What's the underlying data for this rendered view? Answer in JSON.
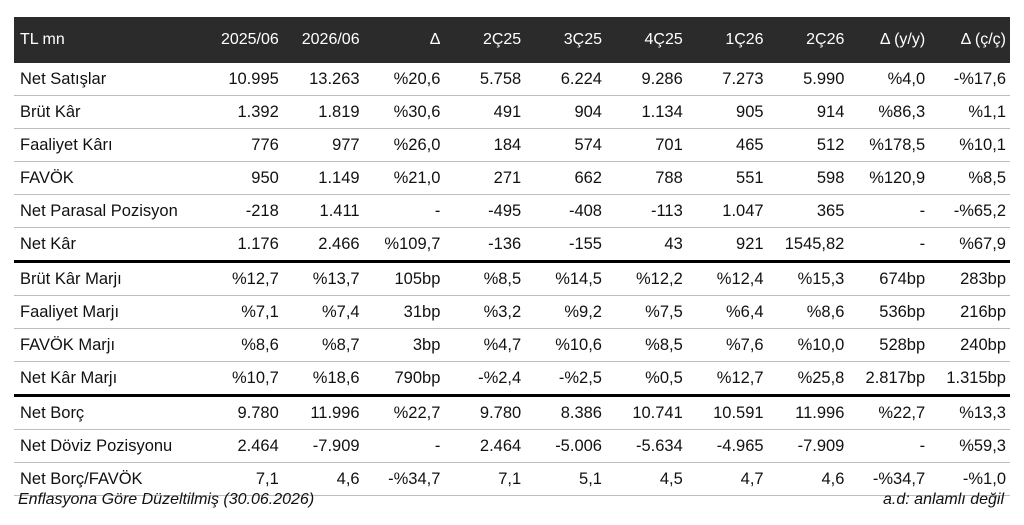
{
  "table": {
    "headers": [
      "TL mn",
      "2025/06",
      "2026/06",
      "Δ",
      "2Ç25",
      "3Ç25",
      "4Ç25",
      "1Ç26",
      "2Ç26",
      "Δ (y/y)",
      "Δ (ç/ç)"
    ],
    "rows": [
      [
        "Net Satışlar",
        "10.995",
        "13.263",
        "%20,6",
        "5.758",
        "6.224",
        "9.286",
        "7.273",
        "5.990",
        "%4,0",
        "-%17,6"
      ],
      [
        "Brüt Kâr",
        "1.392",
        "1.819",
        "%30,6",
        "491",
        "904",
        "1.134",
        "905",
        "914",
        "%86,3",
        "%1,1"
      ],
      [
        "Faaliyet Kârı",
        "776",
        "977",
        "%26,0",
        "184",
        "574",
        "701",
        "465",
        "512",
        "%178,5",
        "%10,1"
      ],
      [
        "FAVÖK",
        "950",
        "1.149",
        "%21,0",
        "271",
        "662",
        "788",
        "551",
        "598",
        "%120,9",
        "%8,5"
      ],
      [
        "Net Parasal Pozisyon",
        "-218",
        "1.411",
        "-",
        "-495",
        "-408",
        "-113",
        "1.047",
        "365",
        "-",
        "-%65,2"
      ],
      [
        "Net Kâr",
        "1.176",
        "2.466",
        "%109,7",
        "-136",
        "-155",
        "43",
        "921",
        "1545,82",
        "-",
        "%67,9"
      ],
      [
        "Brüt Kâr Marjı",
        "%12,7",
        "%13,7",
        "105bp",
        "%8,5",
        "%14,5",
        "%12,2",
        "%12,4",
        "%15,3",
        "674bp",
        "283bp"
      ],
      [
        "Faaliyet Marjı",
        "%7,1",
        "%7,4",
        "31bp",
        "%3,2",
        "%9,2",
        "%7,5",
        "%6,4",
        "%8,6",
        "536bp",
        "216bp"
      ],
      [
        "FAVÖK Marjı",
        "%8,6",
        "%8,7",
        "3bp",
        "%4,7",
        "%10,6",
        "%8,5",
        "%7,6",
        "%10,0",
        "528bp",
        "240bp"
      ],
      [
        "Net Kâr Marjı",
        "%10,7",
        "%18,6",
        "790bp",
        "-%2,4",
        "-%2,5",
        "%0,5",
        "%12,7",
        "%25,8",
        "2.817bp",
        "1.315bp"
      ],
      [
        "Net Borç",
        "9.780",
        "11.996",
        "%22,7",
        "9.780",
        "8.386",
        "10.741",
        "10.591",
        "11.996",
        "%22,7",
        "%13,3"
      ],
      [
        "Net Döviz Pozisyonu",
        "2.464",
        "-7.909",
        "-",
        "2.464",
        "-5.006",
        "-5.634",
        "-4.965",
        "-7.909",
        "-",
        "%59,3"
      ],
      [
        "Net Borç/FAVÖK",
        "7,1",
        "4,6",
        "-%34,7",
        "7,1",
        "5,1",
        "4,5",
        "4,7",
        "4,6",
        "-%34,7",
        "-%1,0"
      ]
    ]
  },
  "footer": {
    "note": "Enflasyona Göre Düzeltilmiş (30.06.2026)",
    "legend": "a.d: anlamlı değil"
  }
}
